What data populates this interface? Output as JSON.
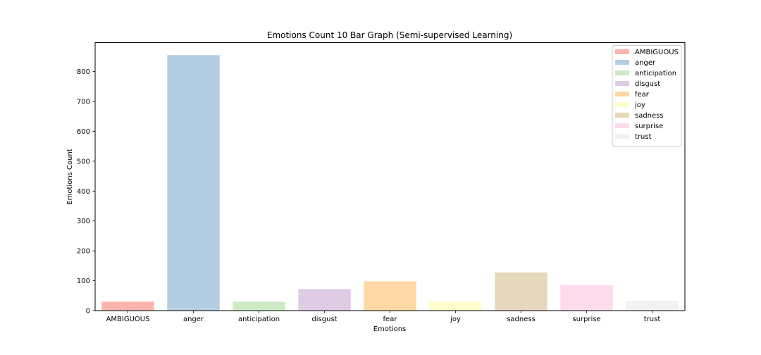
{
  "chart_data": {
    "type": "bar",
    "title": "Emotions Count 10 Bar Graph (Semi-supervised Learning)",
    "xlabel": "Emotions",
    "ylabel": "Emotions Count",
    "categories": [
      "AMBIGUOUS",
      "anger",
      "anticipation",
      "disgust",
      "fear",
      "joy",
      "sadness",
      "surprise",
      "trust"
    ],
    "values": [
      30,
      855,
      30,
      72,
      98,
      30,
      128,
      85,
      33
    ],
    "colors": [
      "#fbb4ae",
      "#b3cde3",
      "#ccebc5",
      "#decbe4",
      "#fed9a6",
      "#ffffcc",
      "#e5d8bd",
      "#fddaec",
      "#f2f2f2"
    ],
    "ylim": [
      0,
      897
    ],
    "yticks": [
      0,
      100,
      200,
      300,
      400,
      500,
      600,
      700,
      800
    ],
    "grid": false,
    "legend": {
      "position": "top-right",
      "entries": [
        "AMBIGUOUS",
        "anger",
        "anticipation",
        "disgust",
        "fear",
        "joy",
        "sadness",
        "surprise",
        "trust"
      ]
    }
  }
}
